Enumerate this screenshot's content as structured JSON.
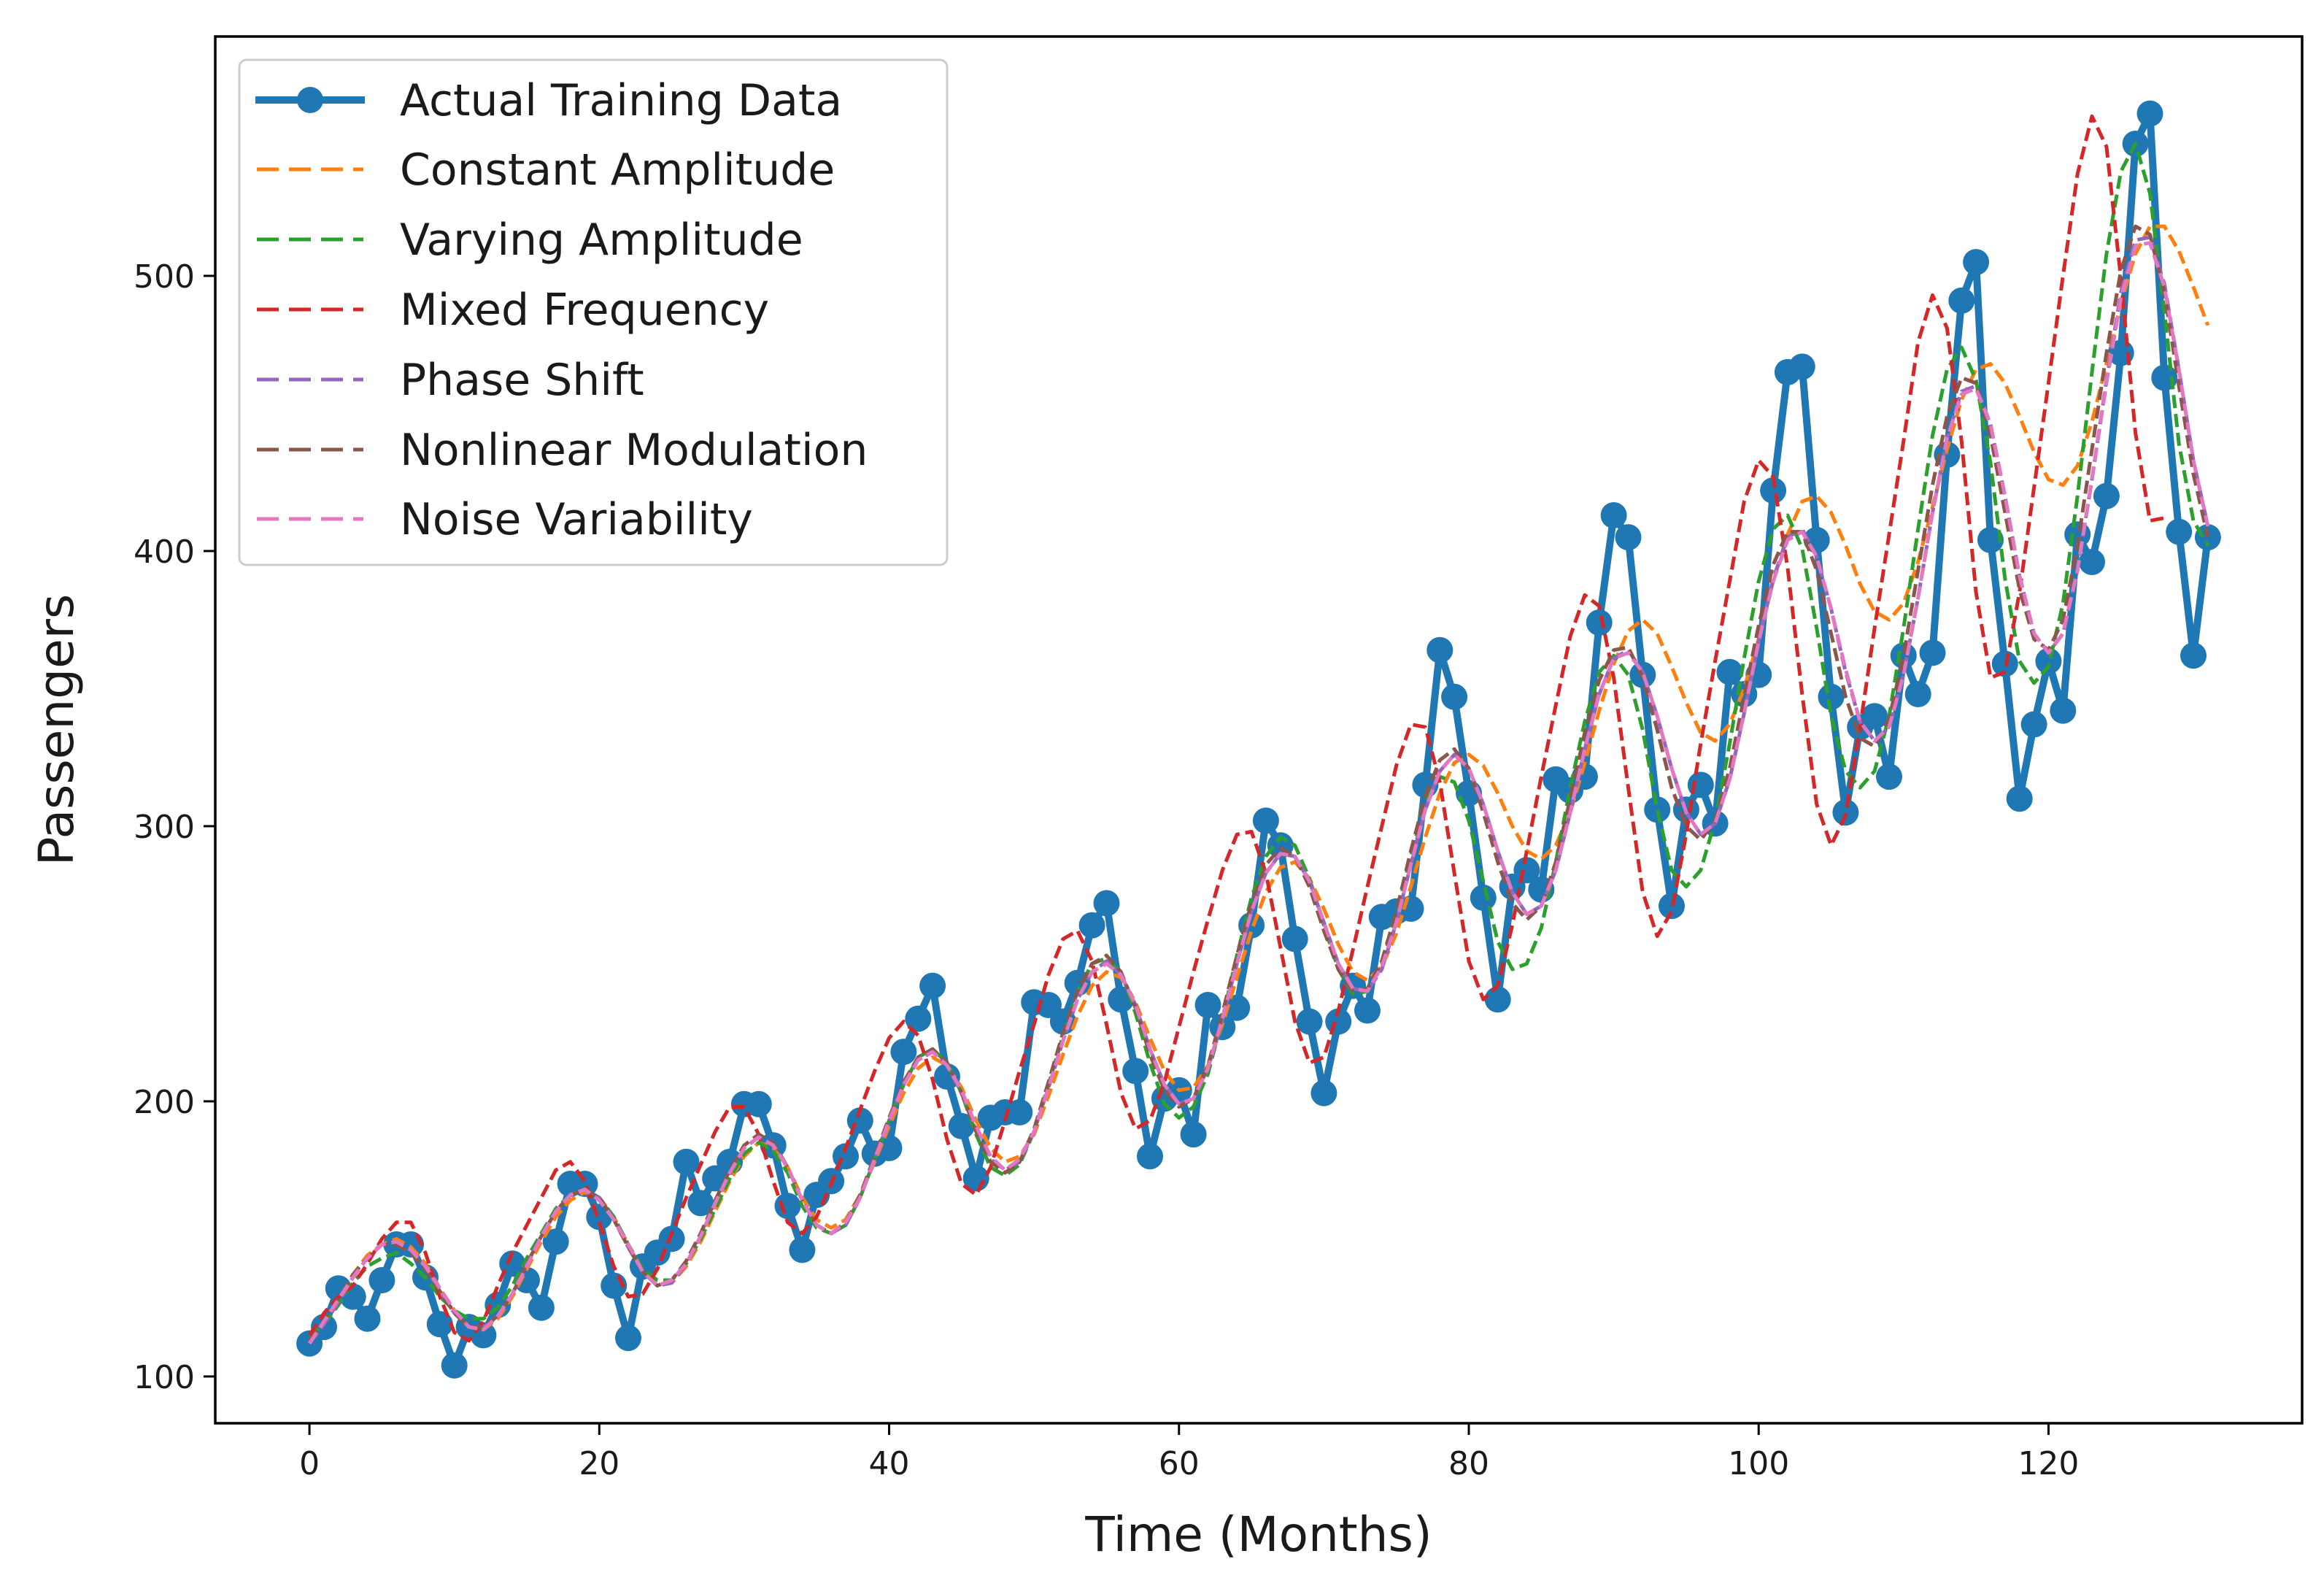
{
  "chart_data": {
    "type": "line",
    "title": "",
    "xlabel": "Time (Months)",
    "ylabel": "Passengers",
    "xlim": [
      -6.5,
      137.5
    ],
    "ylim": [
      83,
      587
    ],
    "xticks": [
      0,
      20,
      40,
      60,
      80,
      100,
      120
    ],
    "yticks": [
      100,
      200,
      300,
      400,
      500
    ],
    "grid": false,
    "legend_position": "top-left",
    "colors": {
      "actual": "#1f77b4",
      "constant": "#ff7f0e",
      "varying": "#2ca02c",
      "mixed": "#d62728",
      "phase": "#9467bd",
      "nonlinear": "#8c564b",
      "noise": "#e377c2",
      "axis": "#000000"
    },
    "series": [
      {
        "name": "Actual Training Data",
        "style": "solid-marker",
        "color": "#1f77b4",
        "values": [
          112,
          118,
          132,
          129,
          121,
          135,
          148,
          148,
          136,
          119,
          104,
          118,
          115,
          126,
          141,
          135,
          125,
          149,
          170,
          170,
          158,
          133,
          114,
          140,
          145,
          150,
          178,
          163,
          172,
          178,
          199,
          199,
          184,
          162,
          146,
          166,
          171,
          180,
          193,
          181,
          183,
          218,
          230,
          242,
          209,
          191,
          172,
          194,
          196,
          196,
          236,
          235,
          229,
          243,
          264,
          272,
          237,
          211,
          180,
          201,
          204,
          188,
          235,
          227,
          234,
          264,
          302,
          293,
          259,
          229,
          203,
          229,
          242,
          233,
          267,
          269,
          270,
          315,
          364,
          347,
          312,
          274,
          237,
          278,
          284,
          277,
          317,
          313,
          318,
          374,
          413,
          405,
          355,
          306,
          271,
          306,
          315,
          301,
          356,
          348,
          355,
          422,
          465,
          467,
          404,
          347,
          305,
          336,
          340,
          318,
          362,
          348,
          363,
          435,
          491,
          505,
          404,
          359,
          310,
          337,
          360,
          342,
          406,
          396,
          420,
          472,
          548,
          559,
          463,
          407,
          362,
          405
        ]
      },
      {
        "name": "Constant Amplitude",
        "style": "dashed",
        "color": "#ff7f0e",
        "values": [
          113,
          120,
          128,
          137,
          144,
          148,
          150,
          147,
          141,
          132,
          124,
          118,
          117,
          121,
          129,
          139,
          149,
          158,
          164,
          167,
          165,
          158,
          148,
          138,
          133,
          134,
          140,
          149,
          160,
          171,
          180,
          185,
          183,
          176,
          165,
          157,
          154,
          157,
          166,
          178,
          191,
          203,
          212,
          216,
          213,
          205,
          193,
          183,
          178,
          180,
          188,
          202,
          217,
          231,
          242,
          247,
          245,
          236,
          223,
          211,
          204,
          205,
          213,
          228,
          245,
          262,
          276,
          285,
          287,
          281,
          270,
          257,
          247,
          244,
          249,
          261,
          278,
          296,
          312,
          323,
          326,
          322,
          312,
          300,
          291,
          288,
          293,
          305,
          323,
          342,
          359,
          371,
          375,
          370,
          358,
          345,
          334,
          331,
          337,
          350,
          368,
          389,
          406,
          418,
          420,
          414,
          402,
          388,
          378,
          375,
          381,
          396,
          416,
          437,
          455,
          466,
          468,
          461,
          449,
          436,
          426,
          424,
          431,
          447,
          468,
          490,
          508,
          518,
          518,
          509,
          496,
          482
        ]
      },
      {
        "name": "Varying Amplitude",
        "style": "dashed",
        "color": "#2ca02c",
        "values": [
          114,
          119,
          126,
          134,
          140,
          143,
          145,
          141,
          136,
          129,
          124,
          121,
          121,
          125,
          133,
          143,
          152,
          161,
          166,
          168,
          165,
          158,
          148,
          139,
          135,
          135,
          141,
          150,
          161,
          172,
          181,
          185,
          182,
          174,
          162,
          154,
          152,
          155,
          165,
          179,
          193,
          206,
          216,
          219,
          214,
          203,
          188,
          176,
          173,
          177,
          189,
          206,
          224,
          240,
          250,
          252,
          247,
          232,
          214,
          199,
          194,
          198,
          210,
          230,
          253,
          274,
          289,
          296,
          293,
          281,
          264,
          248,
          239,
          240,
          250,
          268,
          289,
          309,
          318,
          316,
          302,
          280,
          258,
          248,
          250,
          263,
          287,
          314,
          338,
          356,
          362,
          355,
          335,
          306,
          284,
          278,
          284,
          302,
          330,
          361,
          389,
          408,
          413,
          401,
          372,
          340,
          320,
          314,
          320,
          340,
          372,
          408,
          442,
          466,
          474,
          462,
          432,
          390,
          360,
          352,
          358,
          381,
          420,
          465,
          508,
          538,
          548,
          530,
          487,
          439,
          411,
          402
        ]
      },
      {
        "name": "Mixed Frequency",
        "style": "dashed",
        "color": "#d62728",
        "values": [
          115,
          123,
          129,
          133,
          141,
          150,
          156,
          156,
          145,
          129,
          116,
          113,
          120,
          133,
          145,
          155,
          165,
          175,
          178,
          171,
          156,
          140,
          129,
          130,
          139,
          152,
          165,
          177,
          189,
          198,
          198,
          188,
          171,
          156,
          152,
          158,
          170,
          183,
          197,
          211,
          223,
          229,
          224,
          208,
          186,
          170,
          166,
          176,
          193,
          211,
          228,
          246,
          259,
          262,
          251,
          228,
          203,
          190,
          193,
          207,
          227,
          247,
          266,
          284,
          297,
          298,
          283,
          256,
          229,
          214,
          216,
          233,
          255,
          278,
          300,
          322,
          337,
          336,
          316,
          283,
          251,
          237,
          242,
          264,
          291,
          318,
          344,
          369,
          384,
          380,
          354,
          314,
          276,
          260,
          269,
          297,
          330,
          360,
          389,
          418,
          433,
          427,
          394,
          348,
          308,
          293,
          304,
          336,
          372,
          406,
          440,
          476,
          493,
          481,
          440,
          385,
          354,
          356,
          385,
          423,
          461,
          500,
          537,
          558,
          547,
          499,
          443,
          411,
          412
        ]
      },
      {
        "name": "Phase Shift",
        "style": "dashed",
        "color": "#9467bd",
        "values": [
          112,
          119,
          127,
          136,
          143,
          148,
          149,
          146,
          140,
          131,
          123,
          118,
          118,
          122,
          130,
          141,
          151,
          160,
          166,
          168,
          165,
          157,
          147,
          138,
          133,
          134,
          141,
          151,
          163,
          174,
          183,
          187,
          184,
          176,
          164,
          155,
          152,
          155,
          165,
          179,
          193,
          206,
          215,
          218,
          213,
          203,
          190,
          179,
          175,
          178,
          189,
          205,
          222,
          237,
          247,
          251,
          246,
          235,
          219,
          206,
          199,
          201,
          212,
          230,
          250,
          269,
          283,
          290,
          289,
          280,
          265,
          250,
          241,
          240,
          248,
          265,
          286,
          306,
          320,
          326,
          321,
          308,
          291,
          276,
          268,
          271,
          284,
          305,
          328,
          348,
          361,
          364,
          356,
          340,
          321,
          305,
          297,
          301,
          317,
          341,
          367,
          390,
          405,
          408,
          398,
          379,
          356,
          338,
          331,
          336,
          355,
          383,
          414,
          441,
          458,
          460,
          446,
          420,
          391,
          370,
          363,
          370,
          393,
          426,
          462,
          494,
          513,
          514,
          497,
          466,
          433,
          409
        ]
      },
      {
        "name": "Nonlinear Modulation",
        "style": "dashed",
        "color": "#8c564b",
        "values": [
          113,
          120,
          128,
          137,
          143,
          148,
          148,
          145,
          139,
          131,
          123,
          118,
          118,
          122,
          130,
          141,
          151,
          160,
          166,
          168,
          165,
          157,
          147,
          138,
          133,
          135,
          142,
          152,
          164,
          175,
          184,
          188,
          185,
          176,
          164,
          155,
          152,
          156,
          166,
          180,
          194,
          207,
          216,
          219,
          214,
          203,
          189,
          178,
          174,
          178,
          190,
          207,
          225,
          240,
          250,
          253,
          247,
          234,
          217,
          204,
          198,
          201,
          213,
          232,
          253,
          272,
          286,
          292,
          289,
          278,
          262,
          248,
          240,
          241,
          251,
          269,
          291,
          311,
          324,
          328,
          321,
          305,
          287,
          272,
          266,
          271,
          287,
          310,
          334,
          353,
          364,
          365,
          354,
          335,
          314,
          300,
          295,
          302,
          321,
          347,
          373,
          395,
          407,
          407,
          393,
          370,
          347,
          332,
          329,
          339,
          362,
          393,
          424,
          449,
          463,
          461,
          442,
          414,
          386,
          368,
          364,
          375,
          402,
          437,
          472,
          502,
          518,
          515,
          494,
          460,
          428,
          405
        ]
      },
      {
        "name": "Noise Variability",
        "style": "dashed",
        "color": "#e377c2",
        "values": [
          112,
          120,
          128,
          136,
          143,
          148,
          149,
          146,
          140,
          132,
          124,
          118,
          117,
          122,
          130,
          140,
          151,
          160,
          166,
          168,
          164,
          157,
          148,
          138,
          133,
          135,
          141,
          151,
          163,
          174,
          183,
          187,
          184,
          176,
          164,
          155,
          152,
          156,
          165,
          179,
          193,
          206,
          215,
          218,
          213,
          204,
          191,
          180,
          175,
          179,
          189,
          205,
          222,
          237,
          247,
          250,
          246,
          235,
          219,
          206,
          199,
          201,
          212,
          230,
          250,
          269,
          283,
          290,
          289,
          280,
          265,
          250,
          241,
          240,
          249,
          265,
          286,
          306,
          320,
          326,
          321,
          308,
          291,
          276,
          268,
          271,
          284,
          305,
          328,
          348,
          361,
          363,
          356,
          340,
          321,
          305,
          297,
          301,
          317,
          341,
          367,
          389,
          404,
          407,
          398,
          379,
          357,
          338,
          331,
          336,
          355,
          383,
          414,
          441,
          457,
          459,
          446,
          420,
          391,
          370,
          363,
          370,
          393,
          426,
          461,
          492,
          511,
          512,
          496,
          466,
          433,
          409
        ]
      }
    ]
  }
}
